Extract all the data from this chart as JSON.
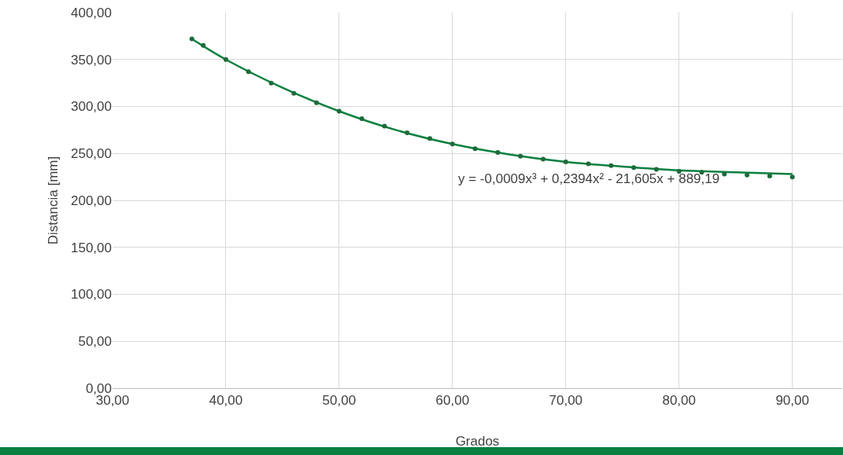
{
  "chart_data": {
    "type": "scatter",
    "xlabel": "Grados",
    "ylabel": "Distancia [mm]",
    "xlim": [
      30,
      94.4
    ],
    "xticks": [
      {
        "value": 30,
        "label": "30,00"
      },
      {
        "value": 40,
        "label": "40,00"
      },
      {
        "value": 50,
        "label": "50,00"
      },
      {
        "value": 60,
        "label": "60,00"
      },
      {
        "value": 70,
        "label": "70,00"
      },
      {
        "value": 80,
        "label": "80,00"
      },
      {
        "value": 90,
        "label": "90,00"
      }
    ],
    "ylim": [
      0,
      400
    ],
    "yticks": [
      {
        "value": 0,
        "label": "0,00"
      },
      {
        "value": 50,
        "label": "50,00"
      },
      {
        "value": 100,
        "label": "100,00"
      },
      {
        "value": 150,
        "label": "150,00"
      },
      {
        "value": 200,
        "label": "200,00"
      },
      {
        "value": 250,
        "label": "250,00"
      },
      {
        "value": 300,
        "label": "300,00"
      },
      {
        "value": 350,
        "label": "350,00"
      },
      {
        "value": 400,
        "label": "400,00"
      }
    ],
    "grid": true,
    "series": [
      {
        "marker": "circle",
        "color": "#1e6b3a",
        "x": [
          37,
          38,
          40,
          42,
          44,
          46,
          48,
          50,
          52,
          54,
          56,
          58,
          60,
          62,
          64,
          66,
          68,
          70,
          72,
          74,
          76,
          78,
          80,
          82,
          84,
          86,
          88,
          90
        ],
        "values": [
          372,
          365,
          350,
          337,
          325,
          314,
          304,
          295,
          287,
          279,
          272,
          266,
          260,
          255,
          251,
          247,
          244,
          241,
          239,
          237,
          235,
          233,
          231,
          230,
          228,
          227,
          226,
          225
        ]
      },
      {
        "type": "line",
        "color": "#0a8040",
        "line_style": "solid",
        "x": [
          37,
          40,
          45,
          50,
          55,
          60,
          65,
          70,
          75,
          80,
          85,
          90
        ],
        "values": [
          372,
          350,
          320,
          295,
          275,
          260,
          249,
          241,
          236,
          232,
          230,
          228
        ]
      }
    ],
    "annotations": [
      {
        "text": "y = -0,0009x³ + 0,2394x² - 21,605x + 889,19",
        "x": 72,
        "y": 241
      }
    ]
  }
}
